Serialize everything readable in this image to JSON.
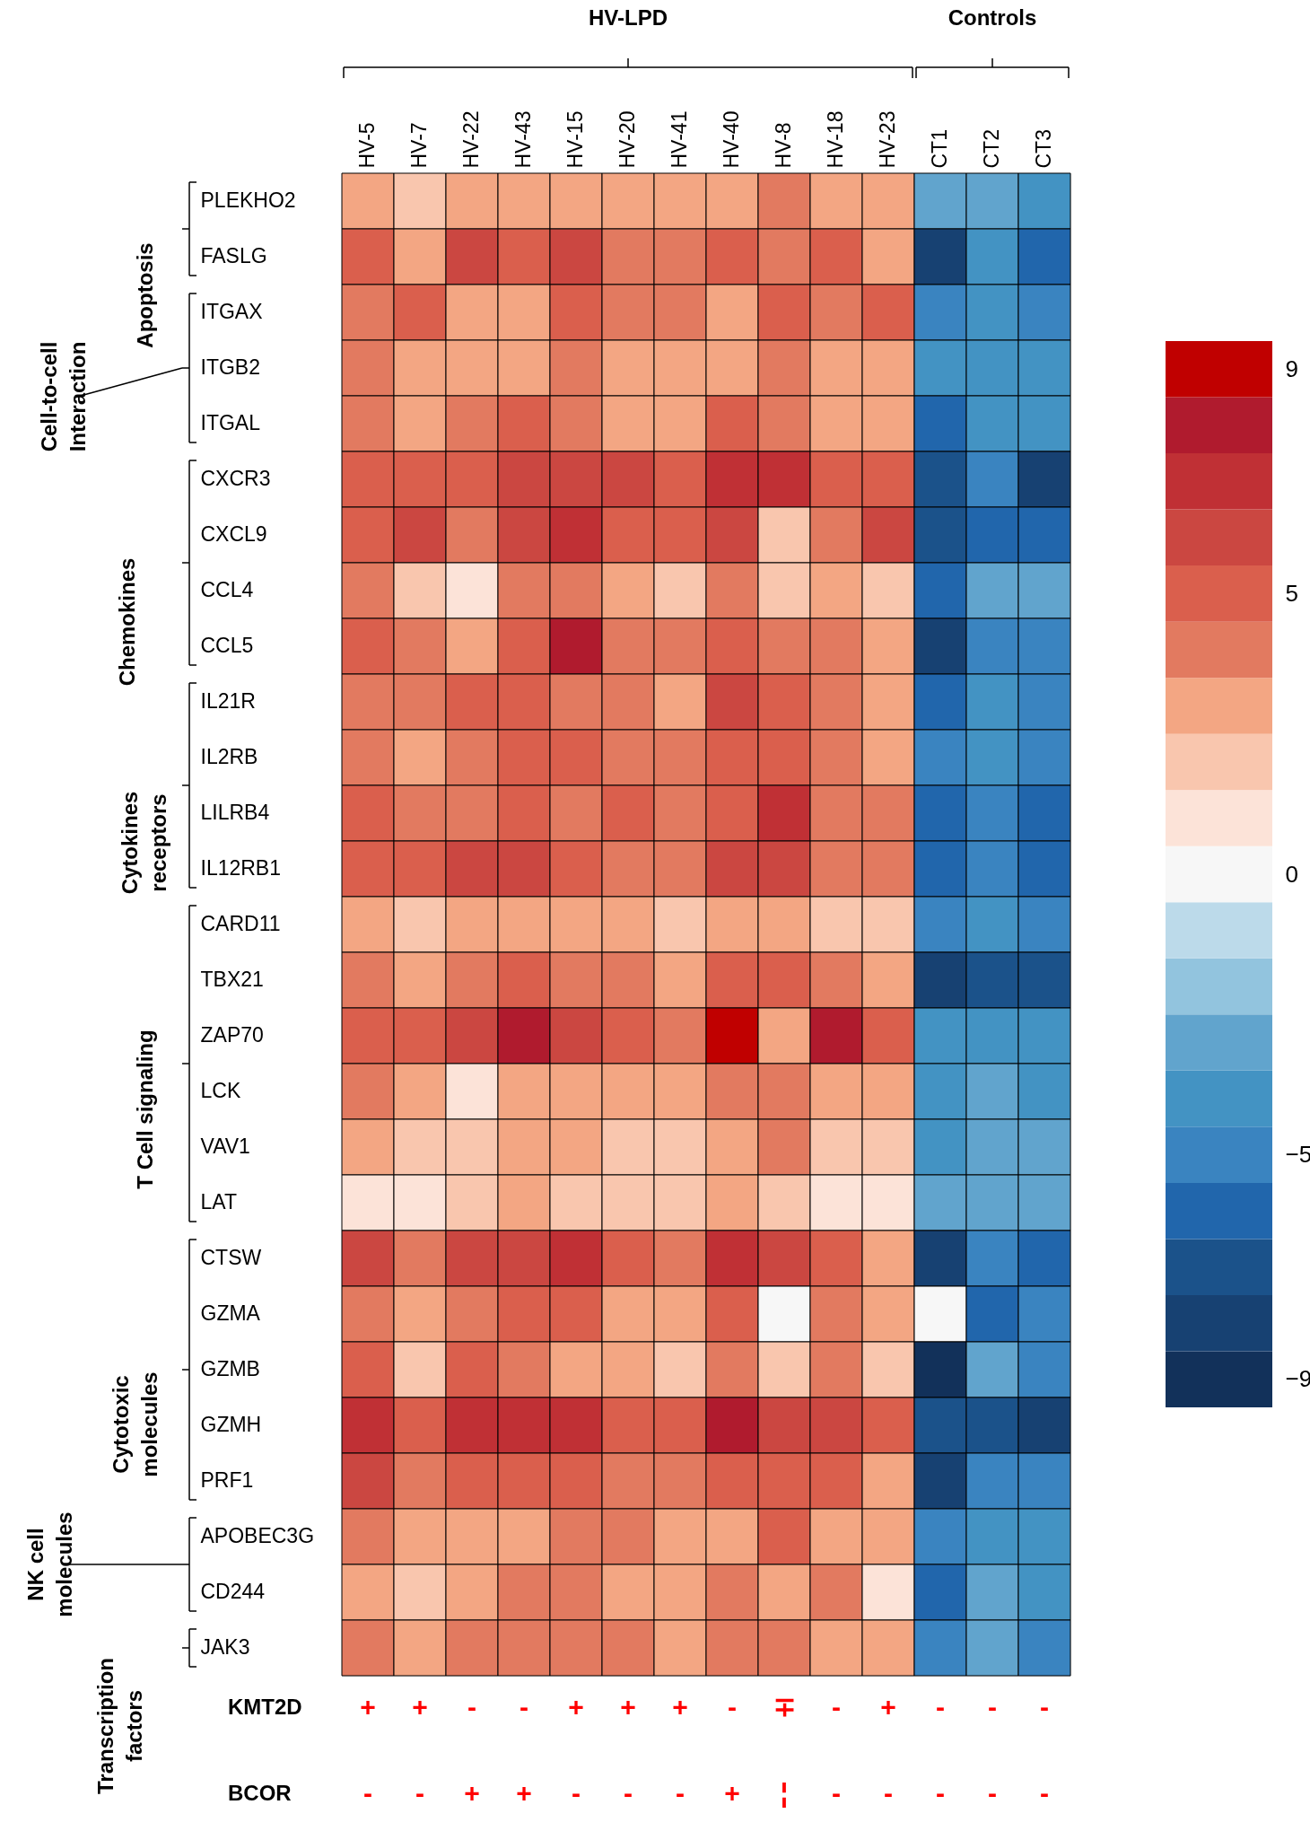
{
  "chart_data": {
    "type": "heatmap",
    "categories": [
      "HV-5",
      "HV-7",
      "HV-22",
      "HV-43",
      "HV-15",
      "HV-20",
      "HV-41",
      "HV-40",
      "HV-8",
      "HV-18",
      "HV-23",
      "CT1",
      "CT2",
      "CT3"
    ],
    "y_categories": [
      "PLEKHO2",
      "FASLG",
      "ITGAX",
      "ITGB2",
      "ITGAL",
      "CXCR3",
      "CXCL9",
      "CCL4",
      "CCL5",
      "IL21R",
      "IL2RB",
      "LILRB4",
      "IL12RB1",
      "CARD11",
      "TBX21",
      "ZAP70",
      "LCK",
      "VAV1",
      "LAT",
      "CTSW",
      "GZMA",
      "GZMB",
      "GZMH",
      "PRF1",
      "APOBEC3G",
      "CD244",
      "JAK3"
    ],
    "cells": [
      [
        3,
        2,
        3,
        3,
        3,
        3,
        3,
        3,
        4,
        3,
        3,
        -3,
        -3,
        -4
      ],
      [
        5,
        3,
        6,
        5,
        6,
        4,
        4,
        5,
        4,
        5,
        3,
        -8,
        -4,
        -6
      ],
      [
        4,
        5,
        3,
        3,
        5,
        4,
        4,
        3,
        5,
        4,
        5,
        -5,
        -4,
        -5
      ],
      [
        4,
        3,
        3,
        3,
        4,
        3,
        3,
        3,
        4,
        3,
        3,
        -4,
        -4,
        -4
      ],
      [
        4,
        3,
        4,
        5,
        4,
        3,
        3,
        5,
        4,
        3,
        3,
        -6,
        -4,
        -4
      ],
      [
        5,
        5,
        5,
        6,
        6,
        6,
        5,
        7,
        7,
        5,
        5,
        -7,
        -5,
        -8
      ],
      [
        5,
        6,
        4,
        6,
        7,
        5,
        5,
        6,
        2,
        4,
        6,
        -7,
        -6,
        -6
      ],
      [
        4,
        2,
        1,
        4,
        4,
        3,
        2,
        4,
        2,
        3,
        2,
        -6,
        -3,
        -3
      ],
      [
        5,
        4,
        3,
        5,
        8,
        4,
        4,
        5,
        4,
        4,
        3,
        -8,
        -5,
        -5
      ],
      [
        4,
        4,
        5,
        5,
        4,
        4,
        3,
        6,
        5,
        4,
        3,
        -6,
        -4,
        -5
      ],
      [
        4,
        3,
        4,
        5,
        5,
        4,
        4,
        5,
        5,
        4,
        3,
        -5,
        -4,
        -5
      ],
      [
        5,
        4,
        4,
        5,
        4,
        5,
        4,
        5,
        7,
        4,
        4,
        -6,
        -5,
        -6
      ],
      [
        5,
        5,
        6,
        6,
        5,
        4,
        4,
        6,
        6,
        4,
        4,
        -6,
        -5,
        -6
      ],
      [
        3,
        2,
        3,
        3,
        3,
        3,
        2,
        3,
        3,
        2,
        2,
        -5,
        -4,
        -5
      ],
      [
        4,
        3,
        4,
        5,
        4,
        4,
        3,
        5,
        5,
        4,
        3,
        -8,
        -7,
        -7
      ],
      [
        5,
        5,
        6,
        8,
        6,
        5,
        4,
        9,
        3,
        8,
        5,
        -4,
        -4,
        -4
      ],
      [
        4,
        3,
        1,
        3,
        3,
        3,
        3,
        4,
        4,
        3,
        3,
        -4,
        -3,
        -4
      ],
      [
        3,
        2,
        2,
        3,
        3,
        2,
        2,
        3,
        4,
        2,
        2,
        -4,
        -3,
        -3
      ],
      [
        1,
        1,
        2,
        3,
        2,
        2,
        2,
        3,
        2,
        1,
        1,
        -3,
        -3,
        -3
      ],
      [
        6,
        4,
        6,
        6,
        7,
        5,
        4,
        7,
        6,
        5,
        3,
        -8,
        -5,
        -6
      ],
      [
        4,
        3,
        4,
        5,
        5,
        3,
        3,
        5,
        0,
        4,
        3,
        0,
        -6,
        -5
      ],
      [
        5,
        2,
        5,
        4,
        3,
        3,
        2,
        4,
        2,
        4,
        2,
        -9,
        -3,
        -5
      ],
      [
        7,
        5,
        7,
        7,
        7,
        5,
        5,
        8,
        6,
        6,
        5,
        -7,
        -7,
        -8
      ],
      [
        6,
        4,
        5,
        5,
        5,
        4,
        4,
        5,
        5,
        5,
        3,
        -8,
        -5,
        -5
      ],
      [
        4,
        3,
        3,
        3,
        4,
        4,
        3,
        3,
        5,
        3,
        3,
        -5,
        -4,
        -4
      ],
      [
        3,
        2,
        3,
        4,
        4,
        3,
        3,
        4,
        3,
        4,
        1,
        -6,
        -3,
        -4
      ],
      [
        4,
        3,
        4,
        4,
        4,
        4,
        3,
        4,
        4,
        3,
        3,
        -5,
        -3,
        -5
      ]
    ],
    "clim": [
      -9,
      9
    ],
    "cticks": [
      9,
      5,
      0,
      -5,
      -9
    ],
    "annotations": [
      "HV-LPD",
      "Controls",
      "Apoptosis",
      "Cell-to-cell\nInteraction",
      "Chemokines",
      "Cytokines\nreceptors",
      "T Cell signaling",
      "Cytotoxic\nmolecules",
      "NK cell\nmolecules",
      "Transcription\nfactors",
      "KMT2D",
      "+",
      "+",
      "-",
      "-",
      "+",
      "+",
      "+",
      "-",
      "∓",
      "-",
      "+",
      "-",
      "-",
      "-",
      "BCOR",
      "-",
      "-",
      "+",
      "+",
      "-",
      "-",
      "-",
      "+",
      "¦",
      "-",
      "-",
      "-",
      "-",
      "-"
    ]
  }
}
